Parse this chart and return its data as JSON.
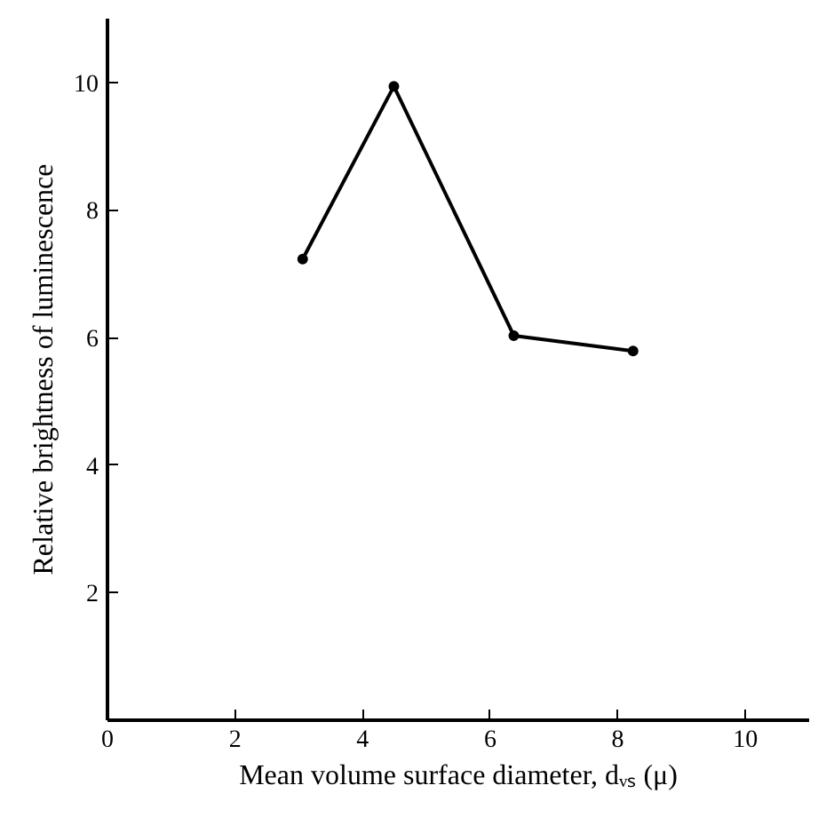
{
  "chart_data": {
    "type": "line",
    "xlabel": "Mean volume surface diameter, dᵥₛ (μ)",
    "ylabel": "Relative brightness of luminescence",
    "x": [
      3.06,
      4.49,
      6.37,
      8.24
    ],
    "series": [
      {
        "color": "#000000",
        "values": [
          7.23,
          9.94,
          6.03,
          5.79
        ]
      }
    ],
    "xlim": [
      0,
      11
    ],
    "ylim": [
      0,
      11
    ],
    "xticks": [
      0,
      2,
      4,
      6,
      8,
      10
    ],
    "yticks": [
      2,
      4,
      6,
      8,
      10
    ],
    "grid": false,
    "marker": "circle",
    "line_style": "solid"
  }
}
